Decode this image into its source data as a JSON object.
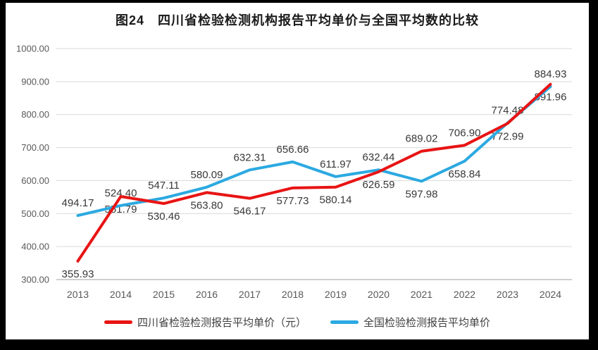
{
  "title": "图24　四川省检验检测机构报告平均单价与全国平均数的比较",
  "chart_data": {
    "type": "line",
    "title": "图24　四川省检验检测机构报告平均单价与全国平均数的比较",
    "categories": [
      "2013",
      "2014",
      "2015",
      "2016",
      "2017",
      "2018",
      "2019",
      "2020",
      "2021",
      "2022",
      "2023",
      "2024"
    ],
    "series": [
      {
        "name": "四川省检验检测报告平均单价（元）",
        "color": "#e81414",
        "values": [
          355.93,
          551.79,
          530.46,
          563.8,
          546.17,
          577.73,
          580.14,
          626.59,
          689.02,
          706.9,
          772.99,
          891.96
        ],
        "labels": [
          "355.93",
          "551.79",
          "530.46",
          "563.80",
          "546.17",
          "577.73",
          "580.14",
          "626.59",
          "689.02",
          "706.90",
          "772.99",
          "891.96"
        ],
        "label_positions": [
          "below",
          "below",
          "below",
          "below",
          "below",
          "below",
          "below",
          "below",
          "above",
          "above",
          "below",
          "below"
        ]
      },
      {
        "name": "全国检验检测报告平均单价",
        "color": "#2ba9e1",
        "values": [
          494.17,
          524.4,
          547.11,
          580.09,
          632.31,
          656.66,
          611.97,
          632.44,
          597.98,
          658.84,
          774.48,
          884.93
        ],
        "labels": [
          "494.17",
          "524.40",
          "547.11",
          "580.09",
          "632.31",
          "656.66",
          "611.97",
          "632.44",
          "597.98",
          "658.84",
          "774.48",
          "884.93"
        ],
        "label_positions": [
          "above",
          "above",
          "above",
          "above",
          "above",
          "above",
          "above",
          "above",
          "below",
          "below",
          "above",
          "above"
        ]
      }
    ],
    "ylim": [
      300,
      1000
    ],
    "y_tick_step": 100,
    "y_ticks": [
      "300.00",
      "400.00",
      "500.00",
      "600.00",
      "700.00",
      "800.00",
      "900.00",
      "1000.00"
    ],
    "grid": true,
    "legend_position": "bottom",
    "styles": {
      "gridline_color": "#d9d9d9",
      "axis_line_color": "#bfbfbf",
      "tick_label_color": "#595959",
      "data_label_color": "#383838",
      "line_width": 4
    }
  }
}
